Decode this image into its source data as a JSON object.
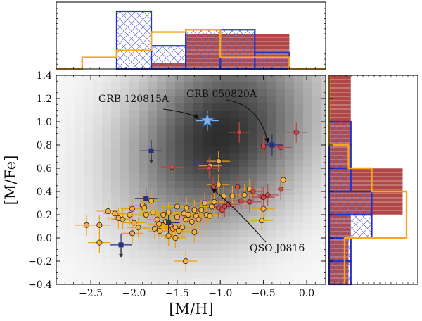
{
  "chart_data": {
    "type": "scatter",
    "xlabel": "[M/H]",
    "ylabel": "[M/Fe]",
    "xlim": [
      -2.9,
      0.22
    ],
    "ylim": [
      -0.4,
      1.4
    ],
    "xticks": [
      -2.5,
      -2.0,
      -1.5,
      -1.0,
      -0.5,
      0.0
    ],
    "xtick_labels": [
      "−2.5",
      "−2.0",
      "−1.5",
      "−1.0",
      "−0.5",
      "0.0"
    ],
    "yticks": [
      -0.4,
      -0.2,
      0.0,
      0.2,
      0.4,
      0.6,
      0.8,
      1.0,
      1.2,
      1.4
    ],
    "ytick_labels": [
      "−0.4",
      "−0.2",
      "0.0",
      "0.2",
      "0.4",
      "0.6",
      "0.8",
      "1.0",
      "1.2",
      "1.4"
    ],
    "background": "grayscale density map of model predictions, darkest near [M/H] = −1.0, [M/Fe] = 0.9",
    "colors": {
      "gamma_dla": "#f5b042",
      "gamma_dla_edge": "#222222",
      "qso_hist": "#f5a623",
      "gamma_err": "#f0a000",
      "gamma_upper": "#b84a4a",
      "lower_limit": "#2a2f7a",
      "star": "#7fb2e8",
      "hist_red": "#b04848",
      "hist_blue": "#2233cc"
    },
    "series": [
      {
        "name": "orange_detections",
        "points": [
          [
            -2.55,
            0.11
          ],
          [
            -2.4,
            0.11
          ],
          [
            -2.4,
            -0.04
          ],
          [
            -2.3,
            0.23
          ],
          [
            -2.22,
            0.21
          ],
          [
            -2.18,
            0.17
          ],
          [
            -2.13,
            0.16
          ],
          [
            -2.05,
            0.2
          ],
          [
            -2.02,
            0.25
          ],
          [
            -2.0,
            0.13
          ],
          [
            -1.95,
            0.09
          ],
          [
            -1.9,
            0.28
          ],
          [
            -1.88,
            0.26
          ],
          [
            -1.86,
            0.2
          ],
          [
            -1.8,
            0.32
          ],
          [
            -1.78,
            0.22
          ],
          [
            -1.73,
            0.16
          ],
          [
            -1.71,
            0.12
          ],
          [
            -1.7,
            0.06
          ],
          [
            -1.66,
            0.2
          ],
          [
            -1.63,
            0.14
          ],
          [
            -1.6,
            0.22
          ],
          [
            -1.6,
            0.02
          ],
          [
            -1.57,
            0.1
          ],
          [
            -1.55,
            0.08
          ],
          [
            -1.52,
            0.09
          ],
          [
            -1.5,
            0.18
          ],
          [
            -1.5,
            0.27
          ],
          [
            -1.48,
            0.06
          ],
          [
            -1.44,
            0.09
          ],
          [
            -1.42,
            0.21
          ],
          [
            -1.4,
            0.16
          ],
          [
            -1.39,
            0.26
          ],
          [
            -1.37,
            0.2
          ],
          [
            -1.33,
            0.14
          ],
          [
            -1.3,
            0.05
          ],
          [
            -1.3,
            0.24
          ],
          [
            -1.28,
            0.19
          ],
          [
            -1.25,
            0.16
          ],
          [
            -1.22,
            0.24
          ],
          [
            -1.18,
            0.3
          ],
          [
            -1.16,
            0.2
          ],
          [
            -1.12,
            0.19
          ],
          [
            -1.1,
            0.27
          ],
          [
            -1.07,
            0.31
          ],
          [
            -1.02,
            0.46
          ],
          [
            -0.96,
            0.36
          ],
          [
            -0.86,
            0.36
          ],
          [
            -0.72,
            0.37
          ],
          [
            -0.66,
            0.42
          ],
          [
            -0.5,
            0.25
          ],
          [
            -0.52,
            0.15
          ],
          [
            -0.27,
            0.5
          ],
          [
            -1.12,
            0.62
          ],
          [
            -1.02,
            0.66
          ],
          [
            -1.4,
            -0.2
          ],
          [
            -1.52,
            0.0
          ],
          [
            -1.76,
            0.08
          ],
          [
            -2.02,
            0.04
          ]
        ]
      },
      {
        "name": "red_points",
        "points": [
          [
            -0.78,
            0.91
          ],
          [
            -0.12,
            0.91
          ],
          [
            -0.3,
            0.78
          ],
          [
            -0.5,
            0.79
          ],
          [
            -1.56,
            0.61
          ],
          [
            -1.13,
            0.6
          ],
          [
            -1.08,
            0.44
          ],
          [
            -0.8,
            0.44
          ],
          [
            -0.62,
            0.4
          ],
          [
            -0.52,
            0.36
          ],
          [
            -0.5,
            0.35
          ],
          [
            -0.45,
            0.37
          ],
          [
            -0.3,
            0.42
          ],
          [
            -0.76,
            0.32
          ],
          [
            -0.9,
            0.29
          ],
          [
            -0.95,
            0.27
          ],
          [
            -1.02,
            0.26
          ],
          [
            -0.98,
            0.24
          ],
          [
            -0.66,
            0.31
          ]
        ]
      },
      {
        "name": "blue_squares",
        "points": [
          [
            -1.8,
            0.75
          ],
          [
            -1.86,
            0.34
          ],
          [
            -1.6,
            0.13
          ],
          [
            -2.15,
            -0.06
          ],
          [
            -0.4,
            0.8
          ]
        ]
      },
      {
        "name": "lower_limit_arrows",
        "points": [
          [
            -1.8,
            0.75
          ],
          [
            -2.15,
            -0.06
          ]
        ]
      },
      {
        "name": "star_grb120815a",
        "points": [
          [
            -1.15,
            1.01
          ]
        ]
      }
    ],
    "annotations": [
      {
        "text": "GRB 120815A",
        "target": [
          -1.15,
          1.01
        ]
      },
      {
        "text": "GRB 050820A",
        "target": [
          -0.4,
          0.8
        ]
      },
      {
        "text": "QSO J0816",
        "target": [
          -1.05,
          0.44
        ]
      }
    ],
    "hist_top": {
      "bin_edges": [
        -2.9,
        -2.6,
        -2.2,
        -1.8,
        -1.4,
        -1.0,
        -0.6,
        -0.2,
        0.22
      ],
      "red": [
        0,
        0,
        0,
        0.11,
        0.6,
        0.6,
        0.6,
        0
      ],
      "blue": [
        0,
        0,
        1.0,
        0.4,
        0.68,
        0.68,
        0.28,
        0
      ],
      "orange": [
        0,
        0.2,
        0.32,
        0.64,
        0.68,
        0.2,
        0.2,
        0
      ]
    },
    "hist_right": {
      "bin_edges": [
        -0.4,
        -0.2,
        0.0,
        0.2,
        0.4,
        0.6,
        0.8,
        1.0,
        1.4
      ],
      "red": [
        0.25,
        0.25,
        0.28,
        0.95,
        0.95,
        0.28,
        0.28,
        0.28
      ],
      "blue": [
        0.28,
        0.28,
        0.55,
        0.55,
        0.28,
        0.28,
        0.28,
        0
      ],
      "orange": [
        0.2,
        0.2,
        1.0,
        1.0,
        0.55,
        0.25,
        0,
        0
      ]
    }
  }
}
